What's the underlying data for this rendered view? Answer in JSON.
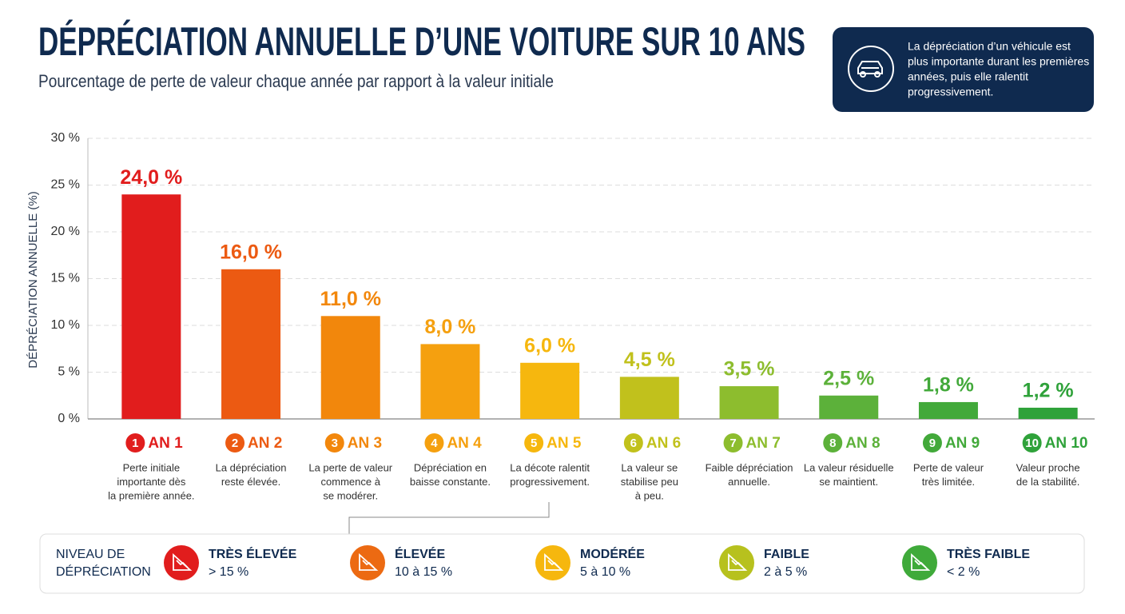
{
  "chart_data": {
    "type": "bar",
    "title": "DÉPRÉCIATION ANNUELLE D’UNE VOITURE SUR 10 ANS",
    "subtitle": "Pourcentage de perte de valeur chaque année par rapport à la valeur initiale",
    "y_label": "DÉPRÉCIATION ANNUELLE (%)",
    "categories": [
      "AN 1",
      "AN 2",
      "AN 3",
      "AN 4",
      "AN 5",
      "AN 6",
      "AN 7",
      "AN 8",
      "AN 9",
      "AN 10"
    ],
    "badges": [
      "1",
      "2",
      "3",
      "4",
      "5",
      "6",
      "7",
      "8",
      "9",
      "10"
    ],
    "descriptions": [
      [
        "Perte initiale",
        "importante dès",
        "la première année."
      ],
      [
        "La dépréciation",
        "reste élevée."
      ],
      [
        "La perte de valeur",
        "commence à",
        "se modérer."
      ],
      [
        "Dépréciation en",
        "baisse constante."
      ],
      [
        "La décote ralentit",
        "progressivement."
      ],
      [
        "La valeur se",
        "stabilise peu",
        "à peu."
      ],
      [
        "Faible dépréciation",
        "annuelle."
      ],
      [
        "La valeur résiduelle",
        "se maintient."
      ],
      [
        "Perte de valeur",
        "très limitée."
      ],
      [
        "Valeur proche",
        "de la stabilité."
      ]
    ],
    "values": [
      24,
      16,
      11,
      8,
      6,
      4.5,
      3.5,
      2.5,
      1.8,
      1.2
    ],
    "value_labels": [
      "24,0 %",
      "16,0 %",
      "11,0 %",
      "8,0 %",
      "6,0 %",
      "4,5 %",
      "3,5 %",
      "2,5 %",
      "1,8 %",
      "1,2 %"
    ],
    "colors": [
      "#e11d1d",
      "#ec5a12",
      "#f2870c",
      "#f5a00f",
      "#f6b70e",
      "#c1c11c",
      "#8dbd2e",
      "#5cb13a",
      "#42a93a",
      "#2fa23a"
    ],
    "ylim": [
      0,
      30
    ],
    "yticks": [
      {
        "value": 0,
        "label": "0 %"
      },
      {
        "value": 5,
        "label": "5 %"
      },
      {
        "value": 10,
        "label": "10 %"
      },
      {
        "value": 15,
        "label": "15 %"
      },
      {
        "value": 20,
        "label": "20 %"
      },
      {
        "value": 25,
        "label": "25 %"
      },
      {
        "value": 30,
        "label": "30 %"
      }
    ],
    "grid": true
  },
  "info_box": {
    "lines": [
      "La dépréciation d’un véhicule est",
      "plus importante durant les premières",
      "années, puis elle ralentit",
      "progressivement."
    ]
  },
  "legend": {
    "title": [
      "NIVEAU DE",
      "DÉPRÉCIATION"
    ],
    "items": [
      {
        "name": "TRÈS ÉLEVÉE",
        "range": "> 15 %",
        "color": "#e11d1d"
      },
      {
        "name": "ÉLEVÉE",
        "range": "10 à 15 %",
        "color": "#ec6a12"
      },
      {
        "name": "MODÉRÉE",
        "range": "5 à 10 %",
        "color": "#f6b70e"
      },
      {
        "name": "FAIBLE",
        "range": "2 à 5 %",
        "color": "#b7c11e"
      },
      {
        "name": "TRÈS FAIBLE",
        "range": "< 2 %",
        "color": "#3faa3a"
      }
    ]
  }
}
